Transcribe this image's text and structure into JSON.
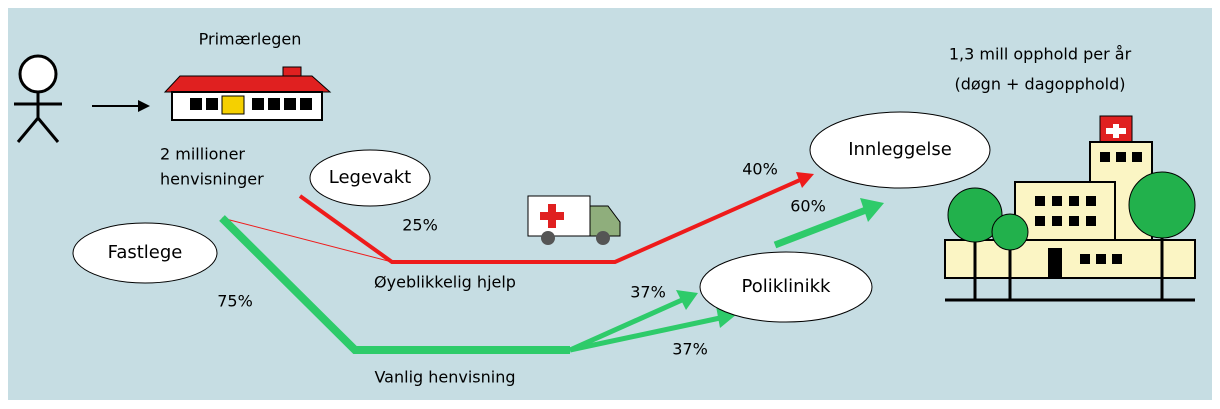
{
  "header": {
    "title": "Primærlegen"
  },
  "referrals": {
    "line1": "2 millioner",
    "line2": "henvisninger"
  },
  "nodes": [
    {
      "label": "Legevakt"
    },
    {
      "label": "Fastlege"
    },
    {
      "label": "Innleggelse"
    },
    {
      "label": "Poliklinikk"
    }
  ],
  "paths": {
    "urgent": "Øyeblikkelig hjelp",
    "regular": "Vanlig henvisning"
  },
  "percentages": {
    "legevakt": "25%",
    "fastlege": "75%",
    "poli_upper": "37%",
    "poli_lower": "37%",
    "innleggelse": "40%",
    "poli_from_urgent": "60%"
  },
  "hospital": {
    "line1": "1,3 mill opphold per år",
    "line2": "(døgn + dagopphold)"
  }
}
